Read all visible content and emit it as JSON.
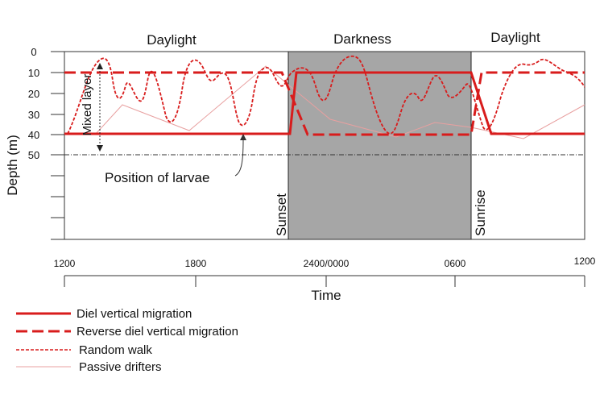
{
  "phases": [
    "Daylight",
    "Darkness",
    "Daylight"
  ],
  "y_axis": {
    "label": "Depth (m)",
    "ticks": [
      "0",
      "10",
      "20",
      "30",
      "40",
      "50"
    ]
  },
  "x_axis": {
    "label": "Time",
    "ticks": [
      "1200",
      "1800",
      "2400/0000",
      "0600",
      "1200"
    ]
  },
  "events": {
    "sunset": "Sunset",
    "sunrise": "Sunrise"
  },
  "annotations": {
    "mixed_layer": "Mixed layer",
    "larvae": "Position of larvae"
  },
  "legend": [
    {
      "label": "Diel vertical migration",
      "style": "thick-solid"
    },
    {
      "label": "Reverse diel vertical migration",
      "style": "thick-dashed"
    },
    {
      "label": "Random walk",
      "style": "thin-dashed"
    },
    {
      "label": "Passive drifters",
      "style": "thin-solid"
    }
  ],
  "colors": {
    "migration": "#d81c1c",
    "passive": "#e8a0a0",
    "darkness_fill": "#a6a6a6"
  }
}
